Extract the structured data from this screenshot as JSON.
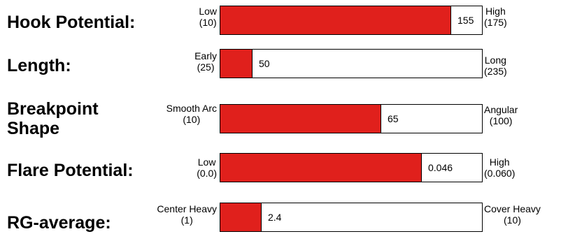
{
  "chart_data": {
    "type": "bar",
    "fill_color": "#e0201c",
    "bars": [
      {
        "label": "Hook Potential:",
        "label_lines": [
          "Hook Potential:"
        ],
        "min_text": [
          "Low",
          "(10)"
        ],
        "max_text": [
          "High",
          "(175)"
        ],
        "min": 10,
        "max": 175,
        "value": 155,
        "value_label": "155"
      },
      {
        "label": "Length:",
        "label_lines": [
          "Length:"
        ],
        "min_text": [
          "Early",
          "(25)"
        ],
        "max_text": [
          "Long",
          "(235)"
        ],
        "min": 25,
        "max": 235,
        "value": 50,
        "value_label": "50"
      },
      {
        "label": "Breakpoint Shape",
        "label_lines": [
          "Breakpoint",
          "Shape"
        ],
        "min_text": [
          "Smooth Arc",
          "(10)"
        ],
        "max_text": [
          "Angular",
          "(100)"
        ],
        "min": 10,
        "max": 100,
        "value": 65,
        "value_label": "65"
      },
      {
        "label": "Flare Potential:",
        "label_lines": [
          "Flare Potential:"
        ],
        "min_text": [
          "Low",
          "(0.0)"
        ],
        "max_text": [
          "High",
          "(0.060)"
        ],
        "min": 0.0,
        "max": 0.06,
        "value": 0.046,
        "value_label": "0.046"
      },
      {
        "label": "RG-average:",
        "label_lines": [
          "RG-average:"
        ],
        "min_text": [
          "Center Heavy",
          "(1)"
        ],
        "max_text": [
          "Cover Heavy",
          "(10)"
        ],
        "min": 1,
        "max": 10,
        "value": 2.4,
        "value_label": "2.4"
      }
    ]
  }
}
